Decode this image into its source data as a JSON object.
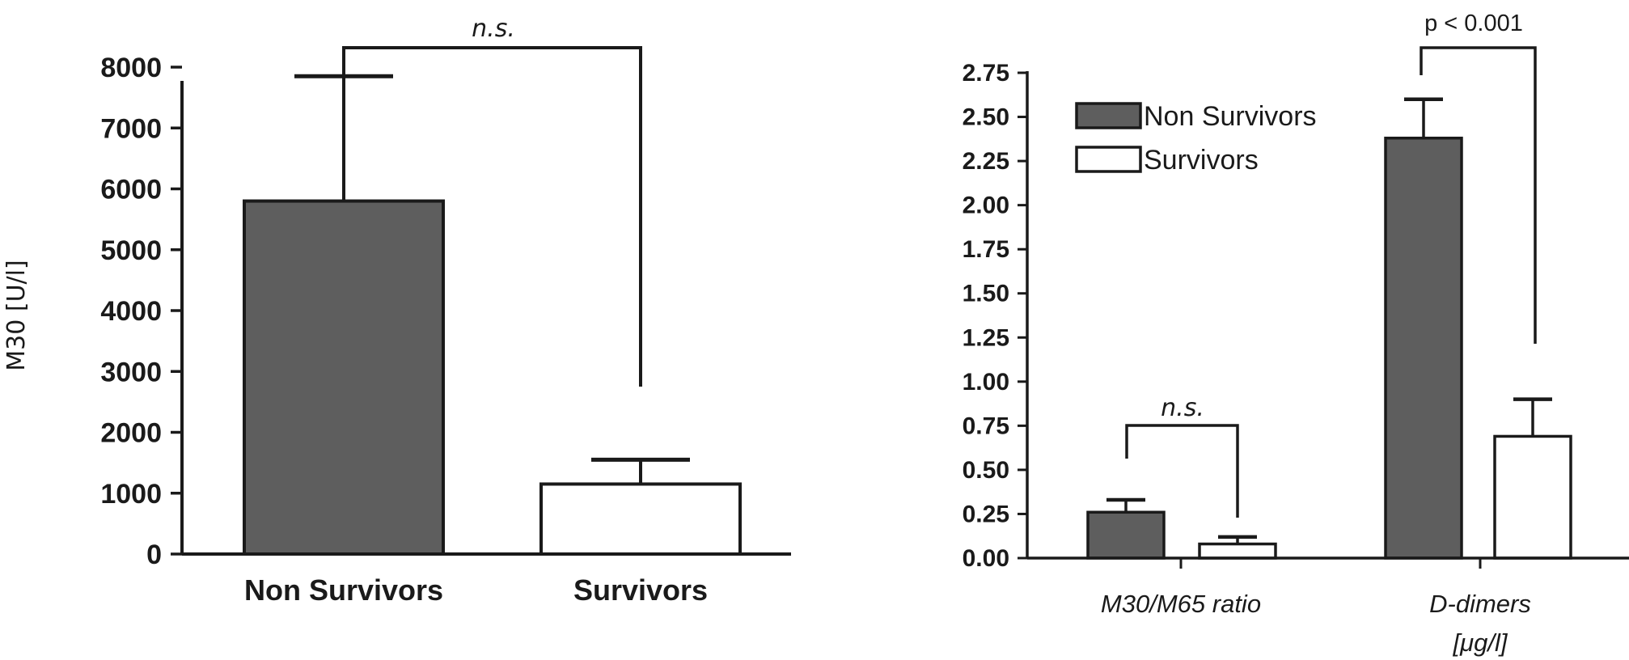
{
  "colors": {
    "non_survivors": "#5e5e5e",
    "survivors": "#ffffff",
    "ink": "#1a1a1a"
  },
  "chart_data": [
    {
      "type": "bar",
      "title": "",
      "ylabel": "M30 [U/l]",
      "xlabel": "",
      "ylim": [
        0,
        8000
      ],
      "yticks": [
        "0",
        "1000",
        "2000",
        "3000",
        "4000",
        "5000",
        "6000",
        "7000",
        "8000"
      ],
      "ytick_values": [
        0,
        1000,
        2000,
        3000,
        4000,
        5000,
        6000,
        7000,
        8000
      ],
      "categories": [
        "Non Survivors",
        "Survivors"
      ],
      "values": [
        5800,
        1150
      ],
      "error_upper": [
        7850,
        1550
      ],
      "annotation": "n.s."
    },
    {
      "type": "bar",
      "title": "",
      "ylabel": "",
      "xlabel": "",
      "ylim": [
        0,
        2.75
      ],
      "yticks": [
        "0.00",
        "0.25",
        "0.50",
        "0.75",
        "1.00",
        "1.25",
        "1.50",
        "1.75",
        "2.00",
        "2.25",
        "2.50",
        "2.75"
      ],
      "ytick_values": [
        0,
        0.25,
        0.5,
        0.75,
        1.0,
        1.25,
        1.5,
        1.75,
        2.0,
        2.25,
        2.5,
        2.75
      ],
      "categories": [
        "M30/M65 ratio",
        "D-dimers"
      ],
      "category_sublabels": [
        "",
        "[μg/l]"
      ],
      "series": [
        {
          "name": "Non Survivors",
          "values": [
            0.26,
            2.38
          ],
          "error_upper": [
            0.33,
            2.6
          ]
        },
        {
          "name": "Survivors",
          "values": [
            0.08,
            0.69
          ],
          "error_upper": [
            0.12,
            0.9
          ]
        }
      ],
      "legend_position": "top-left",
      "annotations": [
        "n.s.",
        "p < 0.001"
      ]
    }
  ]
}
